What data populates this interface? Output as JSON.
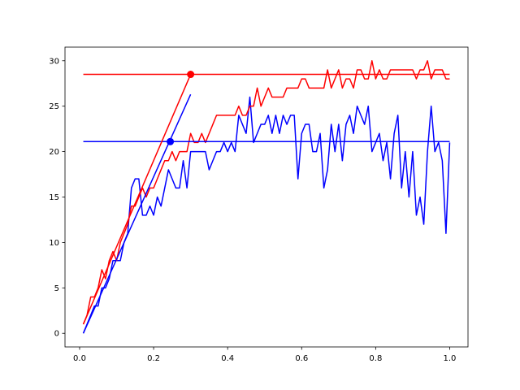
{
  "chart_data": {
    "type": "line",
    "x": [
      0.01,
      0.02,
      0.03,
      0.04,
      0.05,
      0.06,
      0.07,
      0.08,
      0.09,
      0.1,
      0.11,
      0.12,
      0.13,
      0.14,
      0.15,
      0.16,
      0.17,
      0.18,
      0.19,
      0.2,
      0.21,
      0.22,
      0.23,
      0.24,
      0.25,
      0.26,
      0.27,
      0.28,
      0.29,
      0.3,
      0.31,
      0.32,
      0.33,
      0.34,
      0.35,
      0.36,
      0.37,
      0.38,
      0.39,
      0.4,
      0.41,
      0.42,
      0.43,
      0.44,
      0.45,
      0.46,
      0.47,
      0.48,
      0.49,
      0.5,
      0.51,
      0.52,
      0.53,
      0.54,
      0.55,
      0.56,
      0.57,
      0.58,
      0.59,
      0.6,
      0.61,
      0.62,
      0.63,
      0.64,
      0.65,
      0.66,
      0.67,
      0.68,
      0.69,
      0.7,
      0.71,
      0.72,
      0.73,
      0.74,
      0.75,
      0.76,
      0.77,
      0.78,
      0.79,
      0.8,
      0.81,
      0.82,
      0.83,
      0.84,
      0.85,
      0.86,
      0.87,
      0.88,
      0.89,
      0.9,
      0.91,
      0.92,
      0.93,
      0.94,
      0.95,
      0.96,
      0.97,
      0.98,
      0.99,
      1.0
    ],
    "series": [
      {
        "color": "#0000ff",
        "values": [
          0,
          1,
          2,
          3,
          3,
          5,
          5,
          6,
          8,
          8,
          8,
          10,
          11,
          16,
          17,
          17,
          13,
          13,
          14,
          13,
          15,
          14,
          16,
          18,
          17,
          16,
          16,
          19,
          16,
          20,
          20,
          20,
          20,
          20,
          18,
          19,
          20,
          20,
          21,
          20,
          21,
          20,
          24,
          23,
          22,
          26,
          21,
          22,
          23,
          23,
          24,
          22,
          24,
          22,
          24,
          23,
          24,
          24,
          17,
          22,
          23,
          23,
          20,
          20,
          22,
          16,
          18,
          23,
          20,
          23,
          19,
          23,
          24,
          22,
          25,
          24,
          23,
          25,
          20,
          21,
          22,
          19,
          21,
          17,
          22,
          24,
          16,
          20,
          15,
          20,
          13,
          15,
          12,
          20,
          25,
          20,
          21,
          19,
          11,
          21
        ]
      },
      {
        "color": "#ff0000",
        "values": [
          1,
          2,
          4,
          4,
          5,
          7,
          6,
          8,
          9,
          8,
          10,
          11,
          12,
          14,
          14,
          15,
          16,
          15,
          16,
          16,
          17,
          18,
          19,
          19,
          20,
          19,
          20,
          20,
          20,
          22,
          21,
          21,
          22,
          21,
          22,
          23,
          24,
          24,
          24,
          24,
          24,
          24,
          25,
          24,
          24,
          25,
          25,
          27,
          25,
          26,
          27,
          26,
          26,
          26,
          26,
          27,
          27,
          27,
          27,
          28,
          28,
          27,
          27,
          27,
          27,
          27,
          29,
          27,
          28,
          29,
          27,
          28,
          28,
          27,
          29,
          29,
          28,
          28,
          30,
          28,
          29,
          28,
          28,
          29,
          29,
          29,
          29,
          29,
          29,
          29,
          28,
          29,
          29,
          30,
          28,
          29,
          29,
          29,
          28,
          28
        ]
      },
      {
        "color": "#0000ff",
        "x": [
          0.01,
          1.0
        ],
        "values": [
          21.1,
          21.1
        ]
      },
      {
        "color": "#ff0000",
        "x": [
          0.01,
          1.0
        ],
        "values": [
          28.5,
          28.5
        ]
      },
      {
        "color": "#0000ff",
        "x": [
          0.01,
          0.3
        ],
        "values": [
          0,
          26.3
        ]
      },
      {
        "color": "#ff0000",
        "x": [
          0.01,
          0.3
        ],
        "values": [
          1,
          28.5
        ]
      },
      {
        "color": "#0000ff",
        "x": [
          0.245
        ],
        "values": [
          21.1
        ],
        "marker": true
      },
      {
        "color": "#ff0000",
        "x": [
          0.3
        ],
        "values": [
          28.5
        ],
        "marker": true
      }
    ],
    "xlim": [
      -0.0395,
      1.0495
    ],
    "xticks": [
      {
        "value": 0,
        "label": "0.0"
      },
      0.2,
      0.4,
      0.6,
      0.8,
      {
        "value": 1,
        "label": "1.0"
      }
    ],
    "ylim": [
      -1.5,
      31.5
    ],
    "yticks": [
      0,
      5,
      10,
      15,
      20,
      25,
      30
    ]
  }
}
